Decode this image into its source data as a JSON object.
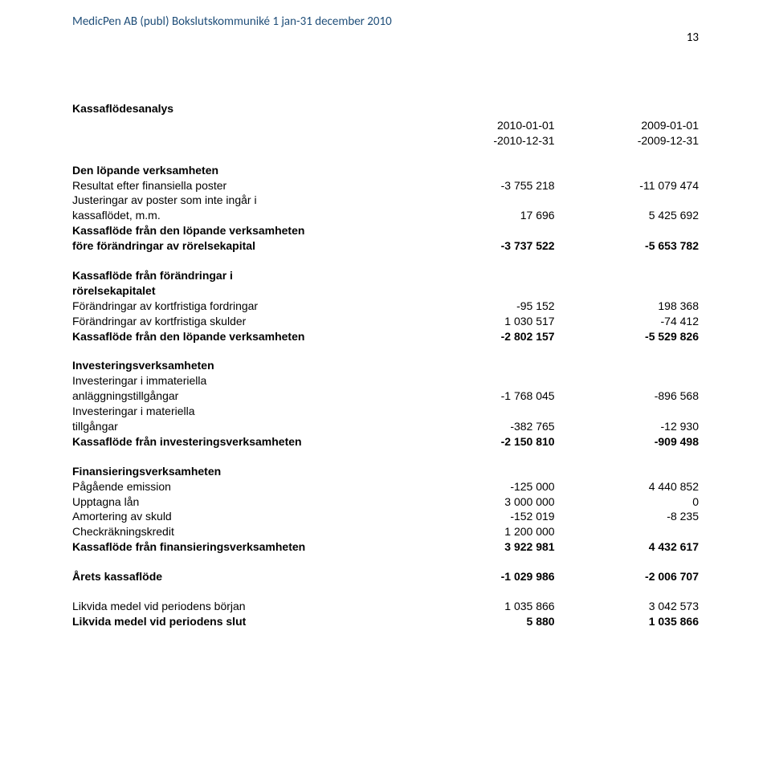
{
  "header": {
    "doc_title": "MedicPen AB (publ) Bokslutskommuniké 1 jan-31 december 2010",
    "page_number": "13"
  },
  "report": {
    "title": "Kassaflödesanalys",
    "period_cols": {
      "c1_top": "2010-01-01",
      "c1_bot": "-2010-12-31",
      "c2_top": "2009-01-01",
      "c2_bot": "-2009-12-31"
    },
    "s_operating": {
      "heading": "Den löpande verksamheten",
      "r1_label": "Resultat efter finansiella poster",
      "r1_v1": "-3 755 218",
      "r1_v2": "-11 079 474",
      "r2_label_a": "Justeringar av poster som inte ingår i",
      "r2_label_b": "kassaflödet, m.m.",
      "r2_v1": "17 696",
      "r2_v2": "5 425 692",
      "r3_label_a": "Kassaflöde från den löpande verksamheten",
      "r3_label_b": "före förändringar av rörelsekapital",
      "r3_v1": "-3 737 522",
      "r3_v2": "-5 653 782"
    },
    "s_wc": {
      "heading_a": "Kassaflöde från förändringar i",
      "heading_b": "rörelsekapitalet",
      "r1_label": "Förändringar av kortfristiga fordringar",
      "r1_v1": "-95 152",
      "r1_v2": "198 368",
      "r2_label": "Förändringar av kortfristiga skulder",
      "r2_v1": "1 030 517",
      "r2_v2": "-74 412",
      "r3_label": "Kassaflöde från den löpande verksamheten",
      "r3_v1": "-2 802 157",
      "r3_v2": "-5 529 826"
    },
    "s_invest": {
      "heading": "Investeringsverksamheten",
      "r1_label_a": "Investeringar i immateriella",
      "r1_label_b": "anläggningstillgångar",
      "r1_v1": "-1 768 045",
      "r1_v2": "-896 568",
      "r2_label_a": "Investeringar i materiella",
      "r2_label_b": "tillgångar",
      "r2_v1": "-382 765",
      "r2_v2": "-12 930",
      "r3_label": "Kassaflöde från investeringsverksamheten",
      "r3_v1": "-2 150 810",
      "r3_v2": "-909 498"
    },
    "s_fin": {
      "heading": "Finansieringsverksamheten",
      "r1_label": "Pågående emission",
      "r1_v1": "-125 000",
      "r1_v2": "4 440 852",
      "r2_label": "Upptagna lån",
      "r2_v1": "3 000 000",
      "r2_v2": "0",
      "r3_label": "Amortering av skuld",
      "r3_v1": "-152 019",
      "r3_v2": "-8 235",
      "r4_label": "Checkräkningskredit",
      "r4_v1": "1 200 000",
      "r4_v2": "",
      "r5_label": "Kassaflöde från finansieringsverksamheten",
      "r5_v1": "3 922 981",
      "r5_v2": "4 432 617"
    },
    "s_year": {
      "label": "Årets kassaflöde",
      "v1": "-1 029 986",
      "v2": "-2 006 707"
    },
    "s_cash": {
      "r1_label": "Likvida medel vid periodens början",
      "r1_v1": "1 035 866",
      "r1_v2": "3 042 573",
      "r2_label": "Likvida medel vid periodens slut",
      "r2_v1": "5 880",
      "r2_v2": "1 035 866"
    }
  }
}
